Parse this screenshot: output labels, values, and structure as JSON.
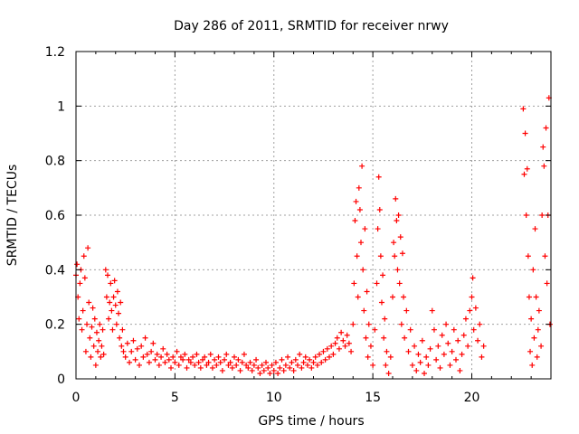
{
  "chart_data": {
    "type": "scatter",
    "title": "Day 286 of 2011, SRMTID for receiver nrwy",
    "xlabel": "GPS time / hours",
    "ylabel": "SRMTID / TECUs",
    "xlim": [
      0,
      24
    ],
    "ylim": [
      0,
      1.2
    ],
    "grid": true,
    "marker": "+",
    "color": "#ff0000",
    "x_ticks": [
      0,
      5,
      10,
      15,
      20
    ],
    "x_tick_labels": [
      "0",
      "5",
      "10",
      "15",
      "20"
    ],
    "y_ticks": [
      0,
      0.2,
      0.4,
      0.6,
      0.8,
      1,
      1.2
    ],
    "y_tick_labels": [
      "0",
      "0.2",
      "0.4",
      "0.6",
      "0.8",
      "1",
      "1.2"
    ],
    "series": [
      {
        "name": "SRMTID",
        "points": [
          [
            0.0,
            0.38
          ],
          [
            0.05,
            0.42
          ],
          [
            0.1,
            0.3
          ],
          [
            0.15,
            0.22
          ],
          [
            0.2,
            0.35
          ],
          [
            0.25,
            0.4
          ],
          [
            0.3,
            0.18
          ],
          [
            0.35,
            0.25
          ],
          [
            0.4,
            0.45
          ],
          [
            0.45,
            0.37
          ],
          [
            0.5,
            0.1
          ],
          [
            0.55,
            0.2
          ],
          [
            0.6,
            0.48
          ],
          [
            0.65,
            0.28
          ],
          [
            0.7,
            0.15
          ],
          [
            0.75,
            0.08
          ],
          [
            0.8,
            0.19
          ],
          [
            0.85,
            0.26
          ],
          [
            0.9,
            0.12
          ],
          [
            0.95,
            0.22
          ],
          [
            1.0,
            0.05
          ],
          [
            1.05,
            0.17
          ],
          [
            1.1,
            0.1
          ],
          [
            1.15,
            0.14
          ],
          [
            1.2,
            0.2
          ],
          [
            1.25,
            0.08
          ],
          [
            1.3,
            0.12
          ],
          [
            1.35,
            0.18
          ],
          [
            1.4,
            0.09
          ],
          [
            1.5,
            0.4
          ],
          [
            1.55,
            0.3
          ],
          [
            1.6,
            0.38
          ],
          [
            1.65,
            0.22
          ],
          [
            1.7,
            0.28
          ],
          [
            1.75,
            0.35
          ],
          [
            1.8,
            0.25
          ],
          [
            1.85,
            0.18
          ],
          [
            1.9,
            0.3
          ],
          [
            1.95,
            0.36
          ],
          [
            2.0,
            0.27
          ],
          [
            2.05,
            0.2
          ],
          [
            2.1,
            0.32
          ],
          [
            2.15,
            0.24
          ],
          [
            2.2,
            0.15
          ],
          [
            2.25,
            0.28
          ],
          [
            2.3,
            0.12
          ],
          [
            2.35,
            0.18
          ],
          [
            2.4,
            0.1
          ],
          [
            2.5,
            0.08
          ],
          [
            2.6,
            0.13
          ],
          [
            2.7,
            0.06
          ],
          [
            2.8,
            0.1
          ],
          [
            2.9,
            0.14
          ],
          [
            3.0,
            0.07
          ],
          [
            3.1,
            0.11
          ],
          [
            3.2,
            0.05
          ],
          [
            3.3,
            0.12
          ],
          [
            3.4,
            0.08
          ],
          [
            3.5,
            0.15
          ],
          [
            3.6,
            0.09
          ],
          [
            3.7,
            0.06
          ],
          [
            3.8,
            0.1
          ],
          [
            3.9,
            0.13
          ],
          [
            4.0,
            0.07
          ],
          [
            4.1,
            0.09
          ],
          [
            4.2,
            0.05
          ],
          [
            4.3,
            0.08
          ],
          [
            4.4,
            0.11
          ],
          [
            4.5,
            0.06
          ],
          [
            4.6,
            0.09
          ],
          [
            4.7,
            0.07
          ],
          [
            4.8,
            0.04
          ],
          [
            4.9,
            0.08
          ],
          [
            5.0,
            0.06
          ],
          [
            5.1,
            0.1
          ],
          [
            5.2,
            0.05
          ],
          [
            5.3,
            0.08
          ],
          [
            5.4,
            0.07
          ],
          [
            5.5,
            0.09
          ],
          [
            5.6,
            0.04
          ],
          [
            5.7,
            0.07
          ],
          [
            5.8,
            0.06
          ],
          [
            5.9,
            0.08
          ],
          [
            6.0,
            0.05
          ],
          [
            6.1,
            0.09
          ],
          [
            6.2,
            0.06
          ],
          [
            6.3,
            0.04
          ],
          [
            6.4,
            0.07
          ],
          [
            6.5,
            0.08
          ],
          [
            6.6,
            0.05
          ],
          [
            6.7,
            0.06
          ],
          [
            6.8,
            0.09
          ],
          [
            6.9,
            0.04
          ],
          [
            7.0,
            0.07
          ],
          [
            7.1,
            0.05
          ],
          [
            7.2,
            0.08
          ],
          [
            7.3,
            0.06
          ],
          [
            7.4,
            0.03
          ],
          [
            7.5,
            0.07
          ],
          [
            7.6,
            0.09
          ],
          [
            7.7,
            0.05
          ],
          [
            7.8,
            0.06
          ],
          [
            7.9,
            0.04
          ],
          [
            8.0,
            0.08
          ],
          [
            8.1,
            0.05
          ],
          [
            8.2,
            0.07
          ],
          [
            8.3,
            0.03
          ],
          [
            8.4,
            0.06
          ],
          [
            8.5,
            0.09
          ],
          [
            8.6,
            0.05
          ],
          [
            8.7,
            0.04
          ],
          [
            8.8,
            0.06
          ],
          [
            8.9,
            0.03
          ],
          [
            9.0,
            0.05
          ],
          [
            9.1,
            0.07
          ],
          [
            9.2,
            0.04
          ],
          [
            9.3,
            0.02
          ],
          [
            9.4,
            0.05
          ],
          [
            9.5,
            0.03
          ],
          [
            9.6,
            0.06
          ],
          [
            9.7,
            0.04
          ],
          [
            9.8,
            0.02
          ],
          [
            9.9,
            0.05
          ],
          [
            10.0,
            0.03
          ],
          [
            10.1,
            0.06
          ],
          [
            10.2,
            0.02
          ],
          [
            10.3,
            0.04
          ],
          [
            10.4,
            0.07
          ],
          [
            10.5,
            0.03
          ],
          [
            10.6,
            0.05
          ],
          [
            10.7,
            0.08
          ],
          [
            10.8,
            0.04
          ],
          [
            10.9,
            0.06
          ],
          [
            11.0,
            0.03
          ],
          [
            11.1,
            0.07
          ],
          [
            11.2,
            0.05
          ],
          [
            11.3,
            0.09
          ],
          [
            11.4,
            0.04
          ],
          [
            11.5,
            0.06
          ],
          [
            11.6,
            0.08
          ],
          [
            11.7,
            0.05
          ],
          [
            11.8,
            0.07
          ],
          [
            11.9,
            0.04
          ],
          [
            12.0,
            0.06
          ],
          [
            12.1,
            0.08
          ],
          [
            12.2,
            0.05
          ],
          [
            12.3,
            0.09
          ],
          [
            12.4,
            0.06
          ],
          [
            12.5,
            0.1
          ],
          [
            12.6,
            0.07
          ],
          [
            12.7,
            0.11
          ],
          [
            12.8,
            0.08
          ],
          [
            12.9,
            0.12
          ],
          [
            13.0,
            0.09
          ],
          [
            13.1,
            0.13
          ],
          [
            13.2,
            0.15
          ],
          [
            13.3,
            0.11
          ],
          [
            13.4,
            0.17
          ],
          [
            13.5,
            0.14
          ],
          [
            13.6,
            0.12
          ],
          [
            13.7,
            0.16
          ],
          [
            13.8,
            0.13
          ],
          [
            13.9,
            0.1
          ],
          [
            14.0,
            0.2
          ],
          [
            14.05,
            0.35
          ],
          [
            14.1,
            0.58
          ],
          [
            14.15,
            0.65
          ],
          [
            14.2,
            0.45
          ],
          [
            14.25,
            0.3
          ],
          [
            14.3,
            0.7
          ],
          [
            14.35,
            0.62
          ],
          [
            14.4,
            0.5
          ],
          [
            14.45,
            0.78
          ],
          [
            14.5,
            0.4
          ],
          [
            14.55,
            0.25
          ],
          [
            14.6,
            0.55
          ],
          [
            14.65,
            0.15
          ],
          [
            14.7,
            0.32
          ],
          [
            14.75,
            0.08
          ],
          [
            14.8,
            0.2
          ],
          [
            14.9,
            0.12
          ],
          [
            15.0,
            0.05
          ],
          [
            15.1,
            0.18
          ],
          [
            15.2,
            0.35
          ],
          [
            15.25,
            0.55
          ],
          [
            15.3,
            0.74
          ],
          [
            15.35,
            0.62
          ],
          [
            15.4,
            0.45
          ],
          [
            15.45,
            0.28
          ],
          [
            15.5,
            0.38
          ],
          [
            15.55,
            0.15
          ],
          [
            15.6,
            0.22
          ],
          [
            15.65,
            0.05
          ],
          [
            15.7,
            0.1
          ],
          [
            15.8,
            0.02
          ],
          [
            15.9,
            0.08
          ],
          [
            16.0,
            0.3
          ],
          [
            16.05,
            0.5
          ],
          [
            16.1,
            0.45
          ],
          [
            16.15,
            0.66
          ],
          [
            16.2,
            0.58
          ],
          [
            16.25,
            0.4
          ],
          [
            16.3,
            0.6
          ],
          [
            16.35,
            0.35
          ],
          [
            16.4,
            0.52
          ],
          [
            16.45,
            0.2
          ],
          [
            16.5,
            0.46
          ],
          [
            16.55,
            0.3
          ],
          [
            16.6,
            0.15
          ],
          [
            16.7,
            0.25
          ],
          [
            16.8,
            0.1
          ],
          [
            16.9,
            0.18
          ],
          [
            17.0,
            0.05
          ],
          [
            17.1,
            0.12
          ],
          [
            17.2,
            0.03
          ],
          [
            17.3,
            0.09
          ],
          [
            17.4,
            0.06
          ],
          [
            17.5,
            0.14
          ],
          [
            17.6,
            0.02
          ],
          [
            17.7,
            0.08
          ],
          [
            17.8,
            0.05
          ],
          [
            17.9,
            0.11
          ],
          [
            18.0,
            0.25
          ],
          [
            18.1,
            0.18
          ],
          [
            18.2,
            0.07
          ],
          [
            18.3,
            0.12
          ],
          [
            18.4,
            0.04
          ],
          [
            18.5,
            0.16
          ],
          [
            18.6,
            0.09
          ],
          [
            18.7,
            0.2
          ],
          [
            18.8,
            0.13
          ],
          [
            18.9,
            0.05
          ],
          [
            19.0,
            0.1
          ],
          [
            19.1,
            0.18
          ],
          [
            19.2,
            0.07
          ],
          [
            19.3,
            0.14
          ],
          [
            19.4,
            0.03
          ],
          [
            19.5,
            0.09
          ],
          [
            19.6,
            0.16
          ],
          [
            19.7,
            0.22
          ],
          [
            19.8,
            0.12
          ],
          [
            19.9,
            0.25
          ],
          [
            20.0,
            0.3
          ],
          [
            20.05,
            0.37
          ],
          [
            20.1,
            0.18
          ],
          [
            20.2,
            0.26
          ],
          [
            20.3,
            0.14
          ],
          [
            20.4,
            0.2
          ],
          [
            20.5,
            0.08
          ],
          [
            20.6,
            0.12
          ],
          [
            22.6,
            0.99
          ],
          [
            22.65,
            0.75
          ],
          [
            22.7,
            0.9
          ],
          [
            22.75,
            0.6
          ],
          [
            22.8,
            0.77
          ],
          [
            22.85,
            0.45
          ],
          [
            22.9,
            0.3
          ],
          [
            22.95,
            0.1
          ],
          [
            23.0,
            0.22
          ],
          [
            23.05,
            0.05
          ],
          [
            23.1,
            0.4
          ],
          [
            23.15,
            0.15
          ],
          [
            23.2,
            0.55
          ],
          [
            23.25,
            0.3
          ],
          [
            23.3,
            0.08
          ],
          [
            23.35,
            0.18
          ],
          [
            23.4,
            0.25
          ],
          [
            23.5,
            0.12
          ],
          [
            23.55,
            0.6
          ],
          [
            23.6,
            0.85
          ],
          [
            23.65,
            0.78
          ],
          [
            23.7,
            0.45
          ],
          [
            23.75,
            0.92
          ],
          [
            23.8,
            0.35
          ],
          [
            23.85,
            0.6
          ],
          [
            23.9,
            1.03
          ],
          [
            23.95,
            0.2
          ]
        ]
      }
    ]
  }
}
